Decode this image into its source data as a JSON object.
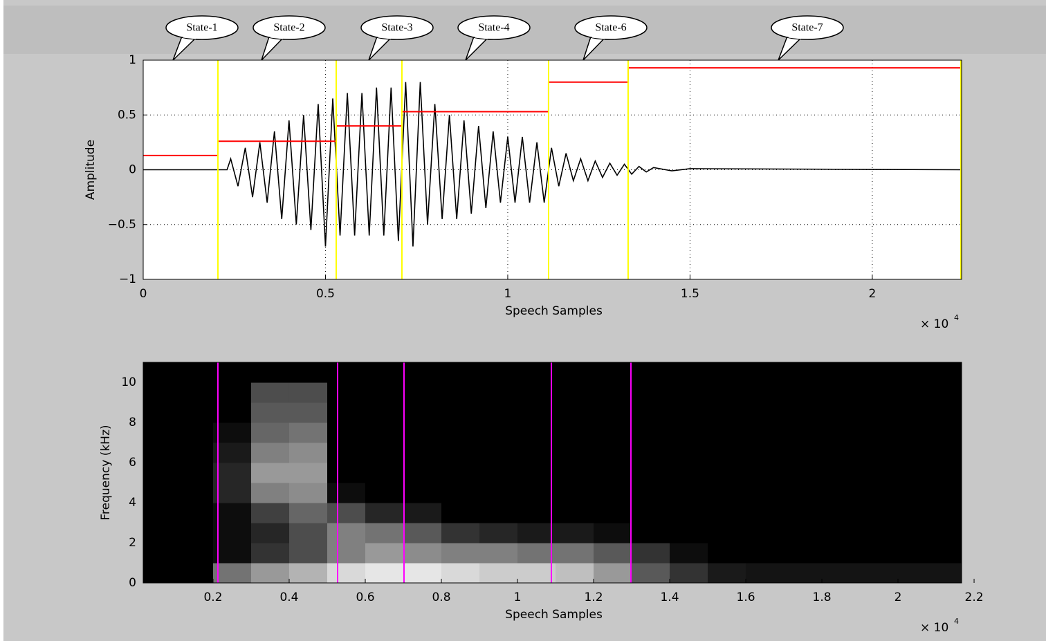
{
  "chart_data": [
    {
      "type": "line",
      "ylabel": "Amplitude",
      "xlabel": "Speech Samples",
      "x_multiplier_base": "× 10",
      "x_multiplier_exp": "4",
      "annotations": [
        "State-1",
        "State-2",
        "State-3",
        "State-4",
        "State-6",
        "State-7"
      ],
      "xlim": [
        0,
        22450
      ],
      "ylim": [
        -1,
        1
      ],
      "xticks": [
        {
          "value": 0,
          "label": "0"
        },
        {
          "value": 5000,
          "label": "0.5"
        },
        {
          "value": 10000,
          "label": "1"
        },
        {
          "value": 15000,
          "label": "1.5"
        },
        {
          "value": 20000,
          "label": "2"
        }
      ],
      "yticks": [
        {
          "value": -1,
          "label": "−1"
        },
        {
          "value": -0.5,
          "label": "−0.5"
        },
        0,
        0.5,
        1
      ],
      "grid": true,
      "series": [
        {
          "color": "#000000",
          "step": false,
          "x": [
            0,
            2300,
            2400,
            2600,
            2800,
            3000,
            3200,
            3400,
            3600,
            3800,
            4000,
            4200,
            4400,
            4600,
            4800,
            5000,
            5200,
            5400,
            5600,
            5800,
            6000,
            6200,
            6400,
            6600,
            6800,
            7000,
            7200,
            7400,
            7600,
            7800,
            8000,
            8200,
            8400,
            8600,
            8800,
            9000,
            9200,
            9400,
            9600,
            9800,
            10000,
            10200,
            10400,
            10600,
            10800,
            11000,
            11200,
            11400,
            11600,
            11800,
            12000,
            12200,
            12400,
            12600,
            12800,
            13000,
            13200,
            13400,
            13600,
            13800,
            14000,
            14500,
            15000,
            22450
          ],
          "values": [
            0,
            0,
            0.1,
            -0.15,
            0.2,
            -0.25,
            0.25,
            -0.3,
            0.35,
            -0.45,
            0.45,
            -0.5,
            0.5,
            -0.55,
            0.6,
            -0.7,
            0.65,
            -0.6,
            0.7,
            -0.6,
            0.7,
            -0.6,
            0.75,
            -0.6,
            0.75,
            -0.65,
            0.8,
            -0.7,
            0.8,
            -0.5,
            0.6,
            -0.45,
            0.5,
            -0.45,
            0.45,
            -0.4,
            0.4,
            -0.35,
            0.35,
            -0.3,
            0.3,
            -0.3,
            0.3,
            -0.3,
            0.25,
            -0.3,
            0.2,
            -0.15,
            0.15,
            -0.1,
            0.1,
            -0.1,
            0.08,
            -0.07,
            0.06,
            -0.05,
            0.05,
            -0.04,
            0.03,
            -0.02,
            0.02,
            -0.01,
            0.01,
            0
          ]
        },
        {
          "color": "#ff0000",
          "step": true,
          "x": [
            0,
            2050,
            5294,
            7097,
            11120,
            13302,
            22450
          ],
          "values": [
            0.13,
            0.26,
            0.4,
            0.53,
            0.8,
            0.93,
            0.93
          ]
        }
      ],
      "vlines": {
        "color": "#ffff00",
        "x": [
          2050,
          5294,
          7097,
          11120,
          13302,
          22430
        ]
      }
    },
    {
      "type": "heatmap",
      "ylabel": "Frequency (kHz)",
      "xlabel": "Speech Samples",
      "x_multiplier_base": "× 10",
      "x_multiplier_exp": "4",
      "xlim": [
        164,
        21672
      ],
      "ylim": [
        0,
        11
      ],
      "xticks": [
        {
          "value": 2000,
          "label": "0.2"
        },
        {
          "value": 4000,
          "label": "0.4"
        },
        {
          "value": 6000,
          "label": "0.6"
        },
        {
          "value": 8000,
          "label": "0.8"
        },
        {
          "value": 10000,
          "label": "1"
        },
        {
          "value": 12000,
          "label": "1.2"
        },
        {
          "value": 14000,
          "label": "1.4"
        },
        {
          "value": 16000,
          "label": "1.6"
        },
        {
          "value": 18000,
          "label": "1.8"
        },
        {
          "value": 20000,
          "label": "2"
        },
        {
          "value": 22000,
          "label": "2.2"
        }
      ],
      "yticks": [
        0,
        2,
        4,
        6,
        8,
        10
      ],
      "grid": false,
      "x": [
        500,
        1500,
        2500,
        3500,
        4500,
        5500,
        6500,
        7500,
        8500,
        9500,
        10500,
        11500,
        12500,
        13500,
        14500,
        15500,
        16500,
        17500,
        18500,
        19500,
        20500,
        21500
      ],
      "y": [
        0.5,
        1.5,
        2.5,
        3.5,
        4.5,
        5.5,
        6.5,
        7.5,
        8.5,
        9.5,
        10.5
      ],
      "z": [
        [
          0,
          0,
          0.45,
          0.6,
          0.7,
          0.85,
          0.9,
          0.9,
          0.85,
          0.8,
          0.8,
          0.75,
          0.6,
          0.35,
          0.2,
          0.1,
          0.08,
          0.08,
          0.08,
          0.08,
          0.08,
          0.08
        ],
        [
          0,
          0,
          0.05,
          0.2,
          0.3,
          0.5,
          0.6,
          0.55,
          0.5,
          0.5,
          0.45,
          0.45,
          0.35,
          0.2,
          0.05,
          0,
          0,
          0,
          0,
          0,
          0,
          0
        ],
        [
          0,
          0,
          0.05,
          0.15,
          0.3,
          0.5,
          0.45,
          0.35,
          0.2,
          0.15,
          0.1,
          0.1,
          0.05,
          0,
          0,
          0,
          0,
          0,
          0,
          0,
          0,
          0
        ],
        [
          0,
          0,
          0.05,
          0.25,
          0.4,
          0.3,
          0.15,
          0.1,
          0,
          0,
          0,
          0,
          0,
          0,
          0,
          0,
          0,
          0,
          0,
          0,
          0,
          0
        ],
        [
          0,
          0,
          0.15,
          0.5,
          0.55,
          0.05,
          0,
          0,
          0,
          0,
          0,
          0,
          0,
          0,
          0,
          0,
          0,
          0,
          0,
          0,
          0,
          0
        ],
        [
          0,
          0,
          0.15,
          0.6,
          0.6,
          0,
          0,
          0,
          0,
          0,
          0,
          0,
          0,
          0,
          0,
          0,
          0,
          0,
          0,
          0,
          0,
          0
        ],
        [
          0,
          0,
          0.1,
          0.5,
          0.55,
          0,
          0,
          0,
          0,
          0,
          0,
          0,
          0,
          0,
          0,
          0,
          0,
          0,
          0,
          0,
          0,
          0
        ],
        [
          0,
          0,
          0.05,
          0.4,
          0.45,
          0,
          0,
          0,
          0,
          0,
          0,
          0,
          0,
          0,
          0,
          0,
          0,
          0,
          0,
          0,
          0,
          0
        ],
        [
          0,
          0,
          0,
          0.35,
          0.35,
          0,
          0,
          0,
          0,
          0,
          0,
          0,
          0,
          0,
          0,
          0,
          0,
          0,
          0,
          0,
          0,
          0
        ],
        [
          0,
          0,
          0,
          0.3,
          0.3,
          0,
          0,
          0,
          0,
          0,
          0,
          0,
          0,
          0,
          0,
          0,
          0,
          0,
          0,
          0,
          0,
          0
        ],
        [
          0,
          0,
          0,
          0,
          0,
          0,
          0,
          0,
          0,
          0,
          0,
          0,
          0,
          0,
          0,
          0,
          0,
          0,
          0,
          0,
          0,
          0
        ]
      ],
      "vlines": {
        "color": "#ff00ff",
        "x": [
          2127,
          5273,
          7018,
          10891,
          12982
        ]
      }
    }
  ]
}
